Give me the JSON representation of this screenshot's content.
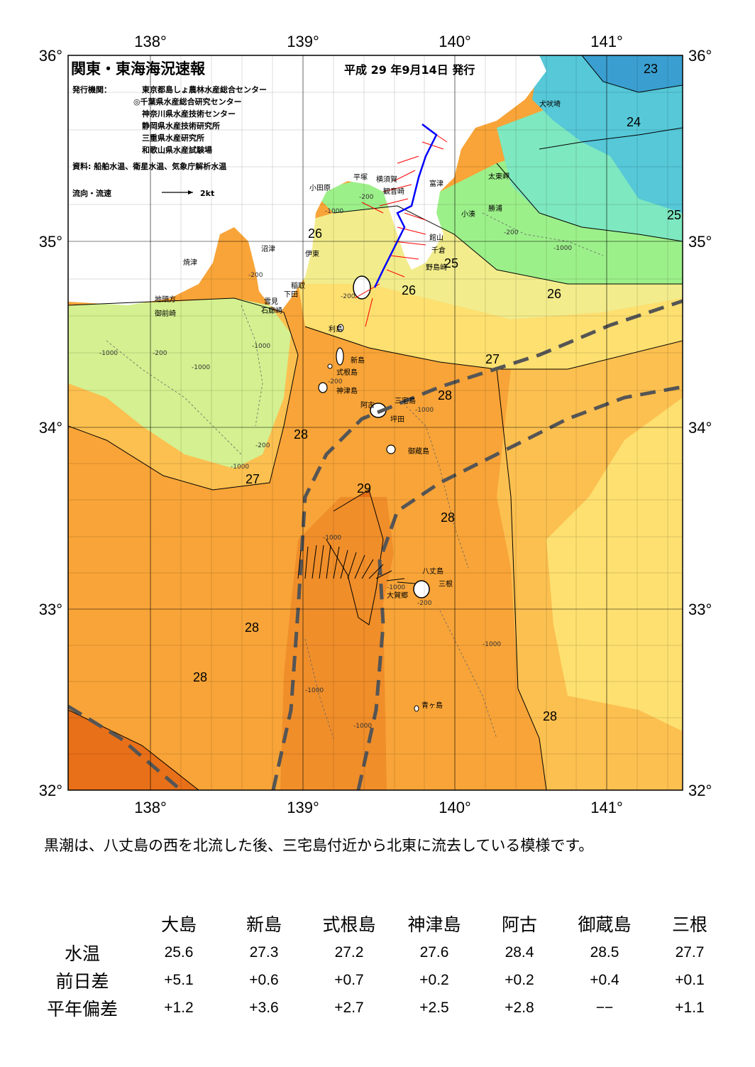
{
  "header": {
    "title": "関東・東海海況速報",
    "issue_date": "平成 29 年9月14日 発行",
    "publisher_label": "発行機関：",
    "publishers": [
      "東京都島しょ農林水産総合センター",
      "◎千葉県水産総合研究センター",
      "神奈川県水産技術センター",
      "静岡県水産技術研究所",
      "三重県水産研究所",
      "和歌山県水産試験場"
    ],
    "sources": "資料: 船舶水温、衛星水温、気象庁解析水温",
    "current_legend": "流向・流速",
    "current_scale": "2kt"
  },
  "axes": {
    "lon_top": [
      "138°",
      "139°",
      "140°",
      "141°"
    ],
    "lon_bottom": [
      "138°",
      "139°",
      "140°",
      "141°"
    ],
    "lat_left": [
      "36°",
      "35°",
      "34°",
      "33°",
      "32°"
    ],
    "lat_right": [
      "36°",
      "35°",
      "34°",
      "33°",
      "32°"
    ]
  },
  "isotherms": [
    "23",
    "24",
    "25",
    "25",
    "26",
    "26",
    "26",
    "27",
    "27",
    "28",
    "28",
    "28",
    "28",
    "28",
    "28",
    "29"
  ],
  "depths": [
    "-200",
    "-1000",
    "-200",
    "-1000",
    "-1000",
    "-200",
    "-200",
    "-1000",
    "-1000",
    "-200",
    "-1000",
    "-1000",
    "-1000",
    "-200",
    "-1000",
    "-1000",
    "-1000",
    "-200",
    "-200",
    "-1000"
  ],
  "places": {
    "inubosaki": "犬吠埼",
    "taitomisaki": "太東岬",
    "katsuura": "勝浦",
    "kominato": "小湊",
    "futtsu": "富津",
    "yokosuka": "横須賀",
    "kannonzaki": "観音崎",
    "hiratsuka": "平塚",
    "odawara": "小田原",
    "tateyama": "館山",
    "chikura": "千倉",
    "nojimazaki": "野島崎",
    "numazu": "沼津",
    "ito": "伊東",
    "inatori": "稲取",
    "shimoda": "下田",
    "kumomi": "雲見",
    "irozaki": "石廊崎",
    "yaizu": "焼津",
    "jitogata": "地頭方",
    "omaezaki": "御前崎",
    "toshima": "利島",
    "niijima": "新島",
    "shikinejima": "式根島",
    "kozushima": "神津島",
    "miyakejima": "三宅島",
    "ako": "阿古",
    "tsubota": "坪田",
    "mikurajima": "御蔵島",
    "hachijojima": "八丈島",
    "mitsune": "三根",
    "okago": "大賀郷",
    "aogashima": "青ヶ島"
  },
  "summary": "黒潮は、八丈島の西を北流した後、三宅島付近から北東に流去している模様です。",
  "stats": {
    "columns": [
      "大島",
      "新島",
      "式根島",
      "神津島",
      "阿古",
      "御蔵島",
      "三根"
    ],
    "rows": [
      {
        "label": "水温",
        "values": [
          "25.6",
          "27.3",
          "27.2",
          "27.6",
          "28.4",
          "28.5",
          "27.7"
        ]
      },
      {
        "label": "前日差",
        "values": [
          "+5.1",
          "+0.6",
          "+0.7",
          "+0.2",
          "+0.2",
          "+0.4",
          "+0.1"
        ]
      },
      {
        "label": "平年偏差",
        "values": [
          "+1.2",
          "+3.6",
          "+2.7",
          "+2.5",
          "+2.8",
          "−−",
          "+1.1"
        ]
      }
    ]
  },
  "colors": {
    "t23": "#3a9fd0",
    "t24": "#56c8d8",
    "t25": "#7ee8c0",
    "t25b": "#9cf08a",
    "t26": "#d4f090",
    "t26b": "#f2ec8c",
    "t27": "#fde070",
    "t27b": "#fcc050",
    "t28": "#f8a438",
    "t28b": "#f08e2a",
    "t29": "#e87018",
    "land": "#ffffff",
    "kuroshio_axis": "#555555",
    "current_arrows_red": "#ff0000",
    "ship_track": "#0000ff"
  }
}
